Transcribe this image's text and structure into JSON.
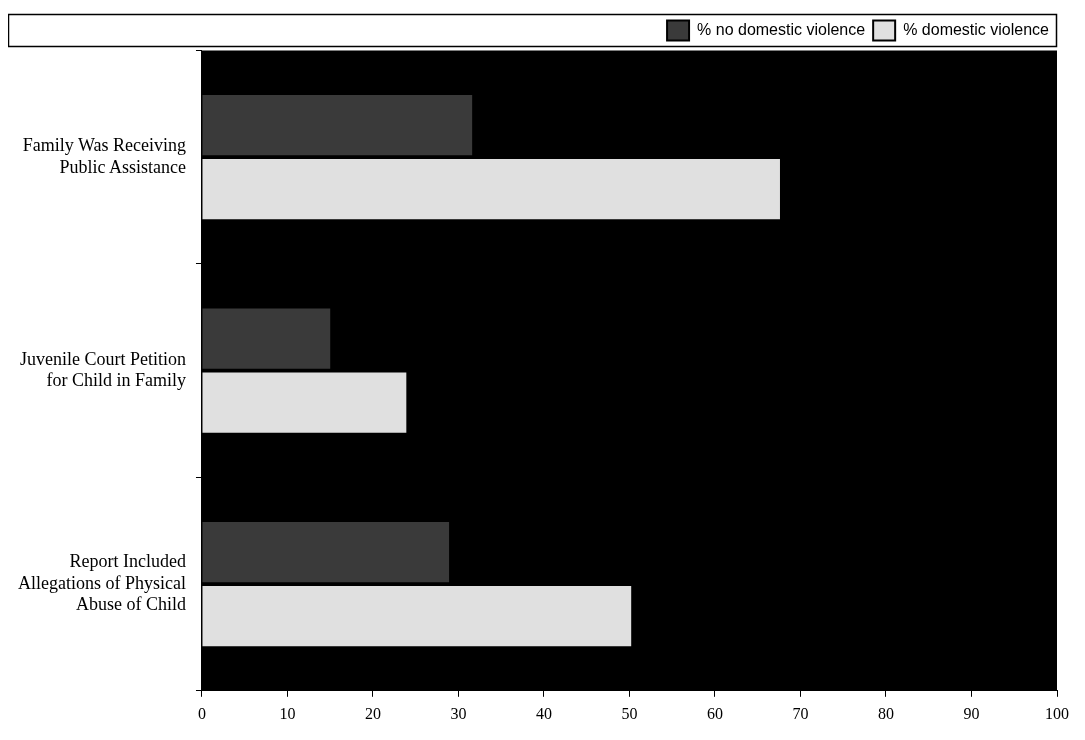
{
  "chart_data": {
    "type": "bar",
    "orientation": "horizontal",
    "categories": [
      "Family Was Receiving Public Assistance",
      "Juvenile Court Petition for Child in Family",
      "Report Included Allegations of Physical Abuse of Child"
    ],
    "series": [
      {
        "name": "% no domestic violence",
        "color": "#3a3a3a",
        "values": [
          31.6,
          15.0,
          28.9
        ]
      },
      {
        "name": "% domestic violence",
        "color": "#e0e0e0",
        "values": [
          67.6,
          23.9,
          50.2
        ]
      }
    ],
    "xlim": [
      0,
      100
    ],
    "xticks": [
      0,
      10,
      20,
      30,
      40,
      50,
      60,
      70,
      80,
      90,
      100
    ],
    "grid": false,
    "legend": "top"
  }
}
